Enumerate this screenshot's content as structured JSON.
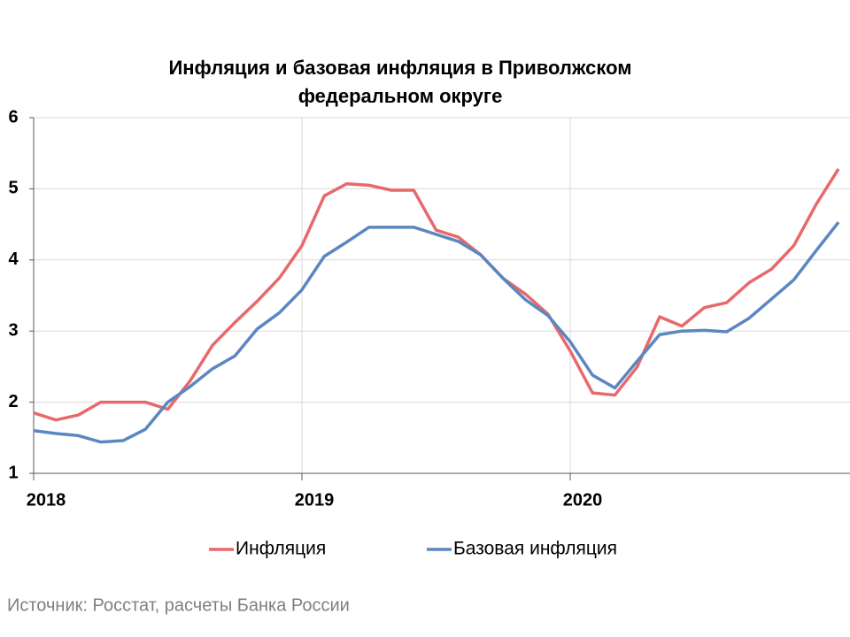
{
  "chart_data": {
    "type": "line",
    "title": "Инфляция и базовая инфляция в Приволжском",
    "subtitle": "федеральном округе",
    "source": "Источник: Росстат, расчеты Банка России",
    "categories": [
      "2018",
      null,
      null,
      null,
      null,
      null,
      null,
      null,
      null,
      null,
      null,
      null,
      "2019",
      null,
      null,
      null,
      null,
      null,
      null,
      null,
      null,
      null,
      null,
      null,
      "2020",
      null,
      null,
      null,
      null,
      null,
      null,
      null,
      null,
      null,
      null,
      null,
      null
    ],
    "series": [
      {
        "name": "Инфляция",
        "color": "#e8696b",
        "values": [
          1.85,
          1.75,
          1.82,
          2.0,
          2.0,
          2.0,
          1.9,
          2.3,
          2.8,
          3.12,
          3.42,
          3.75,
          4.2,
          4.9,
          5.07,
          5.05,
          4.98,
          4.98,
          4.42,
          4.32,
          4.07,
          3.74,
          3.52,
          3.24,
          2.72,
          2.13,
          2.1,
          2.5,
          3.2,
          3.07,
          3.33,
          3.4,
          3.68,
          3.87,
          4.2,
          4.78,
          5.28
        ]
      },
      {
        "name": "Базовая инфляция",
        "color": "#5b87c0",
        "values": [
          1.6,
          1.56,
          1.53,
          1.44,
          1.46,
          1.62,
          2.0,
          2.22,
          2.47,
          2.65,
          3.03,
          3.26,
          3.58,
          4.05,
          4.25,
          4.46,
          4.46,
          4.46,
          4.36,
          4.26,
          4.07,
          3.74,
          3.44,
          3.22,
          2.85,
          2.38,
          2.2,
          2.58,
          2.95,
          3.0,
          3.01,
          2.99,
          3.18,
          3.45,
          3.72,
          4.13,
          4.53
        ]
      }
    ],
    "ylim": [
      1,
      6
    ],
    "yticks": [
      1,
      2,
      3,
      4,
      5,
      6
    ],
    "grid": true,
    "legend": "bottom"
  }
}
